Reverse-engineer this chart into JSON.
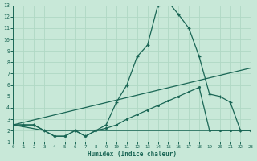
{
  "xlabel": "Humidex (Indice chaleur)",
  "xlim": [
    0,
    23
  ],
  "ylim": [
    1,
    13
  ],
  "xticks": [
    0,
    1,
    2,
    3,
    4,
    5,
    6,
    7,
    8,
    9,
    10,
    11,
    12,
    13,
    14,
    15,
    16,
    17,
    18,
    19,
    20,
    21,
    22,
    23
  ],
  "yticks": [
    1,
    2,
    3,
    4,
    5,
    6,
    7,
    8,
    9,
    10,
    11,
    12,
    13
  ],
  "bg_color": "#c8e8d8",
  "line_color": "#1a6655",
  "grid_color": "#b0d8c4",
  "curve1_x": [
    0,
    1,
    2,
    3,
    4,
    5,
    6,
    7,
    8,
    9,
    10,
    11,
    12,
    13,
    14,
    15,
    16,
    17,
    18,
    19,
    20,
    21,
    22,
    23
  ],
  "curve1_y": [
    2.5,
    2.5,
    2.5,
    2.0,
    1.5,
    1.5,
    2.0,
    1.5,
    2.0,
    2.5,
    4.5,
    6.0,
    8.5,
    9.5,
    13.0,
    13.3,
    12.2,
    11.0,
    8.5,
    5.2,
    5.0,
    4.5,
    2.0,
    2.0
  ],
  "curve2_x": [
    0,
    2,
    3,
    4,
    5,
    6,
    7,
    8,
    9,
    10,
    11,
    12,
    13,
    14,
    15,
    16,
    17,
    18,
    19,
    20,
    21,
    22,
    23
  ],
  "curve2_y": [
    2.5,
    2.5,
    2.0,
    1.5,
    1.5,
    2.0,
    1.5,
    2.0,
    2.2,
    2.5,
    3.0,
    3.4,
    3.8,
    4.2,
    4.6,
    5.0,
    5.4,
    5.8,
    2.0,
    2.0,
    2.0,
    2.0,
    2.0
  ],
  "curve3_x": [
    0,
    23
  ],
  "curve3_y": [
    2.5,
    7.5
  ],
  "curve4_x": [
    0,
    3,
    18,
    19,
    20,
    21,
    22,
    23
  ],
  "curve4_y": [
    2.5,
    2.0,
    2.0,
    2.0,
    2.0,
    2.0,
    2.0,
    2.0
  ]
}
